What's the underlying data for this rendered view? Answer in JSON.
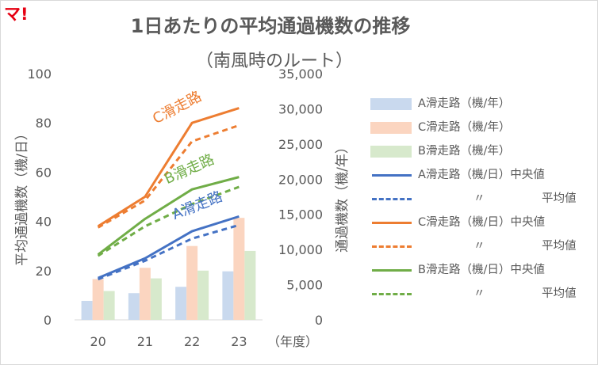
{
  "logo": "マ!",
  "title": "1日あたりの平均通過機数の推移",
  "subtitle": "（南風時のルート）",
  "chart_data": {
    "type": "bar+line",
    "categories": [
      "20",
      "21",
      "22",
      "23"
    ],
    "xlabel": "（年度）",
    "ylabel_left": "平均通過機数（機/日）",
    "ylabel_right": "通過機数（機/年）",
    "ylim_left": [
      0,
      100
    ],
    "ylim_right": [
      0,
      35000
    ],
    "yticks_left": [
      "0",
      "20",
      "40",
      "60",
      "80",
      "100"
    ],
    "yticks_right": [
      "0",
      "5,000",
      "10,000",
      "15,000",
      "20,000",
      "25,000",
      "30,000",
      "35,000"
    ],
    "grid": false,
    "legend_position": "right",
    "bar_series": [
      {
        "name": "A滑走路（機/年）",
        "values": [
          2700,
          3800,
          4700,
          6900
        ],
        "color": "#c9d9ee"
      },
      {
        "name": "C滑走路（機/年）",
        "values": [
          5800,
          7400,
          10500,
          14500
        ],
        "color": "#fbd5c0"
      },
      {
        "name": "B滑走路（機/年）",
        "values": [
          4100,
          5900,
          7000,
          9800
        ],
        "color": "#d7e9cc"
      }
    ],
    "line_series": [
      {
        "name": "A滑走路（機/日）中央値",
        "values": [
          17,
          25,
          36,
          42
        ],
        "color": "#4472c4",
        "dash": "solid"
      },
      {
        "name": "A滑走路（機/日）平均値",
        "values": [
          16.5,
          24,
          33,
          38.5
        ],
        "color": "#4472c4",
        "dash": "dashed"
      },
      {
        "name": "C滑走路（機/日）中央値",
        "values": [
          38,
          50,
          80,
          86
        ],
        "color": "#ed7d31",
        "dash": "solid"
      },
      {
        "name": "C滑走路（機/日）平均値",
        "values": [
          37.5,
          48.5,
          72.5,
          79
        ],
        "color": "#ed7d31",
        "dash": "dashed"
      },
      {
        "name": "B滑走路（機/日）中央値",
        "values": [
          26.5,
          41,
          53,
          58
        ],
        "color": "#70ad47",
        "dash": "solid"
      },
      {
        "name": "B滑走路（機/日）平均値",
        "values": [
          26,
          38,
          47,
          54
        ],
        "color": "#70ad47",
        "dash": "dashed"
      }
    ],
    "annotations": [
      {
        "text": "C滑走路",
        "color": "#ed7d31"
      },
      {
        "text": "B滑走路",
        "color": "#70ad47"
      },
      {
        "text": "A滑走路",
        "color": "#4472c4"
      }
    ]
  },
  "legend": [
    {
      "label": "A滑走路（機/年）",
      "kind": "bar",
      "color": "#c9d9ee",
      "ditto": "",
      "suffix": ""
    },
    {
      "label": "C滑走路（機/年）",
      "kind": "bar",
      "color": "#fbd5c0",
      "ditto": "",
      "suffix": ""
    },
    {
      "label": "B滑走路（機/年）",
      "kind": "bar",
      "color": "#d7e9cc",
      "ditto": "",
      "suffix": ""
    },
    {
      "label": "A滑走路（機/日）中央値",
      "kind": "solid",
      "color": "#4472c4",
      "ditto": "",
      "suffix": ""
    },
    {
      "label": "",
      "kind": "dashed",
      "color": "#4472c4",
      "ditto": "〃",
      "suffix": "平均値"
    },
    {
      "label": "C滑走路（機/日）中央値",
      "kind": "solid",
      "color": "#ed7d31",
      "ditto": "",
      "suffix": ""
    },
    {
      "label": "",
      "kind": "dashed",
      "color": "#ed7d31",
      "ditto": "〃",
      "suffix": "平均値"
    },
    {
      "label": "B滑走路（機/日）中央値",
      "kind": "solid",
      "color": "#70ad47",
      "ditto": "",
      "suffix": ""
    },
    {
      "label": "",
      "kind": "dashed",
      "color": "#70ad47",
      "ditto": "〃",
      "suffix": "平均値"
    }
  ]
}
